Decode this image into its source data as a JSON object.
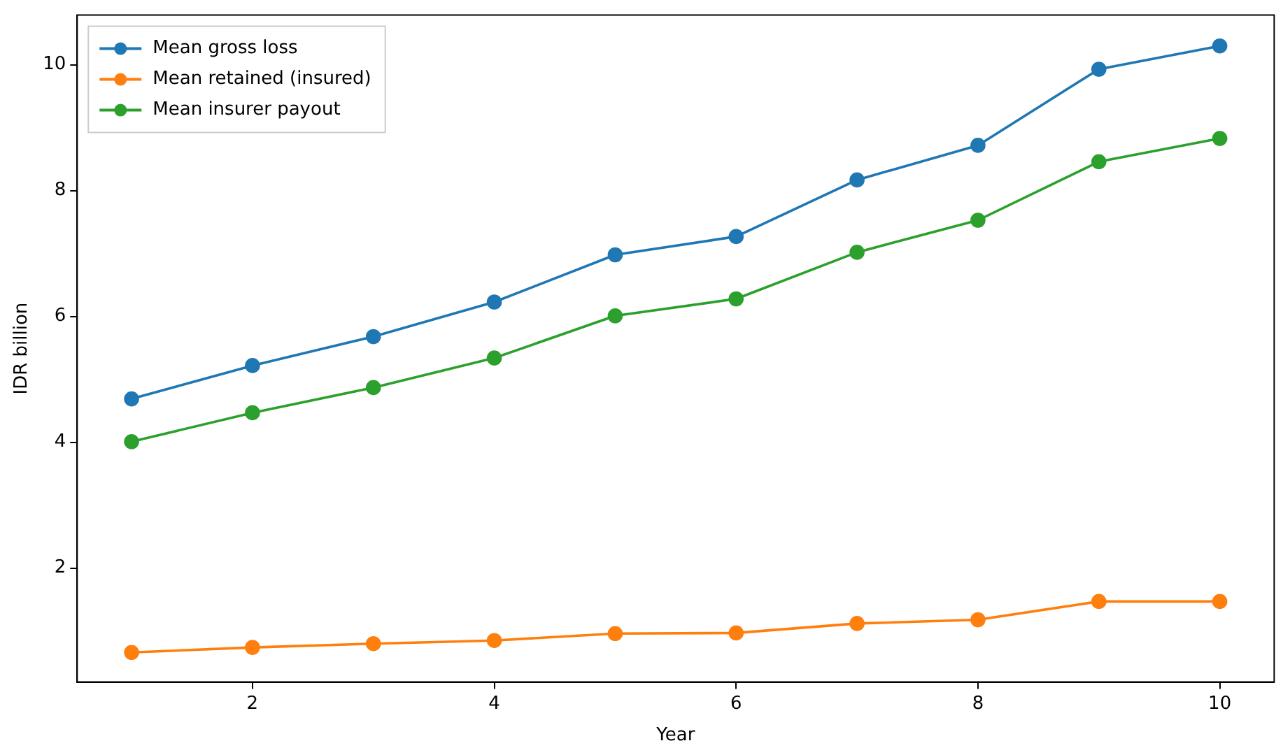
{
  "chart_data": {
    "type": "line",
    "xlabel": "Year",
    "ylabel": "IDR billion",
    "x": [
      1,
      2,
      3,
      4,
      5,
      6,
      7,
      8,
      9,
      10
    ],
    "series": [
      {
        "name": "Mean gross loss",
        "color": "#1f77b4",
        "values": [
          4.69,
          5.22,
          5.68,
          6.23,
          6.98,
          7.27,
          8.17,
          8.72,
          9.93,
          10.3
        ]
      },
      {
        "name": "Mean retained (insured)",
        "color": "#ff7f0e",
        "values": [
          0.66,
          0.74,
          0.8,
          0.85,
          0.96,
          0.97,
          1.12,
          1.18,
          1.47,
          1.47
        ]
      },
      {
        "name": "Mean insurer payout",
        "color": "#2ca02c",
        "values": [
          4.01,
          4.47,
          4.87,
          5.34,
          6.01,
          6.28,
          7.02,
          7.53,
          8.46,
          8.83
        ]
      }
    ],
    "xlim": [
      0.55,
      10.45
    ],
    "xticks": [
      2,
      4,
      6,
      8,
      10
    ],
    "ylim": [
      0.19,
      10.79
    ],
    "yticks": [
      2,
      4,
      6,
      8,
      10
    ],
    "grid": false,
    "legend": "top left",
    "marker": "circle",
    "line_style": "solid"
  }
}
